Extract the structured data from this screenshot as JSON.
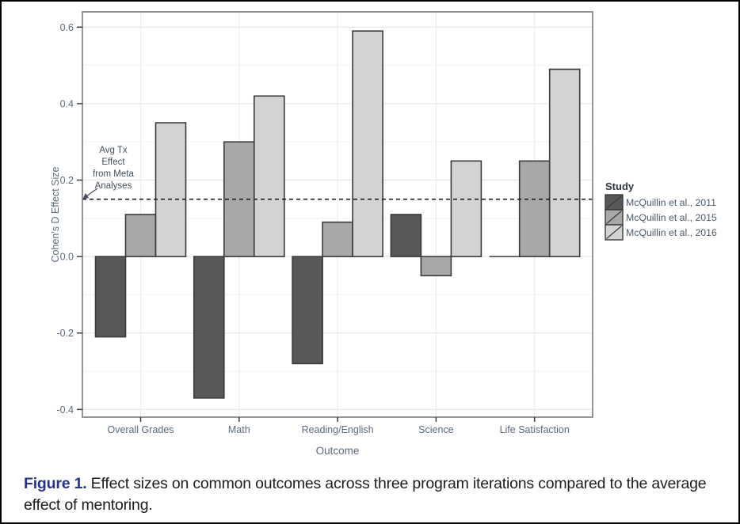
{
  "figure": {
    "caption_label": "Figure 1.",
    "caption_text": " Effect sizes on common outcomes across three program iterations compared to the average effect of mentoring."
  },
  "chart_data": {
    "type": "bar",
    "title": "",
    "xlabel": "Outcome",
    "ylabel": "Cohen's D Effect Size",
    "categories": [
      "Overall Grades",
      "Math",
      "Reading/English",
      "Science",
      "Life Satisfaction"
    ],
    "series": [
      {
        "name": "McQuillin et al., 2011",
        "color": "#58585a",
        "values": [
          -0.21,
          -0.37,
          -0.28,
          0.11,
          0
        ]
      },
      {
        "name": "McQuillin et al., 2015",
        "color": "#a8a8ab",
        "values": [
          0.11,
          0.3,
          0.09,
          -0.05,
          0.25
        ]
      },
      {
        "name": "McQuillin et al., 2016",
        "color": "#d3d3d5",
        "values": [
          0.35,
          0.42,
          0.59,
          0.25,
          0.49
        ]
      }
    ],
    "legend_title": "Study",
    "legend_position": "right",
    "yticks": [
      0.6,
      0.4,
      0.2,
      0.0,
      -0.2,
      -0.4
    ],
    "ylim": [
      -0.42,
      0.64
    ],
    "grid": {
      "horizontal_major_step": 0.2,
      "horizontal_minor_step": 0.1,
      "vertical": "category-centers"
    },
    "reference_line": {
      "value": 0.15,
      "style": "dashed",
      "annotation_lines": [
        "Avg Tx",
        "Effect",
        "from Meta",
        "Analyses"
      ]
    }
  },
  "colors": {
    "bar_border": "#3a3a3c",
    "panel_border": "#8a8a8a",
    "grid_major": "#e6e6e6",
    "grid_minor": "#f2f2f2",
    "grid_vertical": "#ededed",
    "tick_mark": "#3c3c3c",
    "axis_text": "#5c6b7d",
    "legend_title_text": "#2e3440",
    "legend_label_text": "#4c5a6a",
    "annotation_text": "#45505e",
    "reference_line": "#1f1f1f",
    "caption_label": "#27348b",
    "caption_text": "#1c1c1c"
  }
}
